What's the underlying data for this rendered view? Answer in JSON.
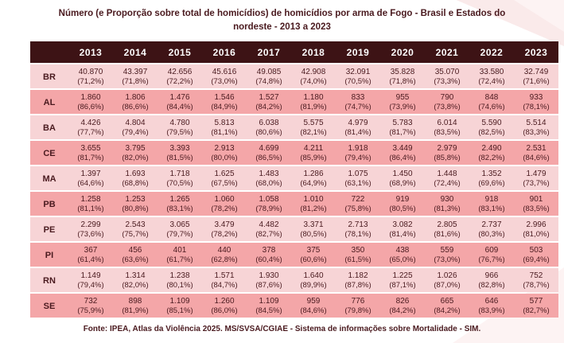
{
  "title": "Número (e Proporção sobre total de homicídios) de homicídios por arma de Fogo - Brasil e Estados do nordeste - 2013 a 2023",
  "source": "Fonte: IPEA, Atlas da Violência 2025. MS/SVSA/CGIAE - Sistema de informações sobre Mortalidade - SIM.",
  "colors": {
    "header_bg": "#3d1315",
    "row_light": "#f7d4d6",
    "row_dark": "#f4a6a8",
    "text": "#4a1a1f",
    "header_text": "#ffffff",
    "decoration": "#faeaea"
  },
  "chart_data": {
    "type": "table",
    "title": "Número (e Proporção sobre total de homicídios) de homicídios por arma de Fogo - Brasil e Estados do nordeste - 2013 a 2023",
    "columns": [
      "2013",
      "2014",
      "2015",
      "2016",
      "2017",
      "2018",
      "2019",
      "2020",
      "2021",
      "2022",
      "2023"
    ],
    "rows": [
      {
        "label": "BR",
        "values": [
          "40.870",
          "43.397",
          "42.656",
          "45.616",
          "49.085",
          "42.908",
          "32.091",
          "35.828",
          "35.070",
          "33.580",
          "32.749"
        ],
        "percents": [
          "(71,2%)",
          "(71,8%)",
          "(72,2%)",
          "(73,0%)",
          "(74,8%)",
          "(74,0%)",
          "(70,5%)",
          "(71,8%)",
          "(73,3%)",
          "(72,4%)",
          "(71,6%)"
        ]
      },
      {
        "label": "AL",
        "values": [
          "1.860",
          "1.806",
          "1.476",
          "1.546",
          "1.527",
          "1.180",
          "833",
          "955",
          "790",
          "848",
          "933"
        ],
        "percents": [
          "(86,6%)",
          "(86,6%)",
          "(84,4%)",
          "(84,9%)",
          "(84,2%)",
          "(81,9%)",
          "(74,7%)",
          "(73,9%)",
          "(73,8%)",
          "(74,6%)",
          "(78,1%)"
        ]
      },
      {
        "label": "BA",
        "values": [
          "4.426",
          "4.804",
          "4.780",
          "5.813",
          "6.038",
          "5.575",
          "4.979",
          "5.783",
          "6.014",
          "5.590",
          "5.514"
        ],
        "percents": [
          "(77,7%)",
          "(79,4%)",
          "(79,5%)",
          "(81,1%)",
          "(80,6%)",
          "(82,1%)",
          "(81,4%)",
          "(81,7%)",
          "(83,5%)",
          "(82,5%)",
          "(83,3%)"
        ]
      },
      {
        "label": "CE",
        "values": [
          "3.655",
          "3.795",
          "3.393",
          "2.913",
          "4.699",
          "4.211",
          "1.918",
          "3.449",
          "2.979",
          "2.490",
          "2.531"
        ],
        "percents": [
          "(81,7%)",
          "(82,0%)",
          "(81,5%)",
          "(80,0%)",
          "(86,5%)",
          "(85,9%)",
          "(79,4%)",
          "(86,4%)",
          "(85,8%)",
          "(82,2%)",
          "(84,6%)"
        ]
      },
      {
        "label": "MA",
        "values": [
          "1.397",
          "1.693",
          "1.718",
          "1.625",
          "1.483",
          "1.286",
          "1.075",
          "1.450",
          "1.448",
          "1.352",
          "1.479"
        ],
        "percents": [
          "(64,6%)",
          "(68,8%)",
          "(70,5%)",
          "(67,5%)",
          "(68,0%)",
          "(64,9%)",
          "(63,1%)",
          "(68,9%)",
          "(72,4%)",
          "(69,6%)",
          "(73,7%)"
        ]
      },
      {
        "label": "PB",
        "values": [
          "1.258",
          "1.253",
          "1.265",
          "1.060",
          "1.058",
          "1.010",
          "722",
          "919",
          "930",
          "918",
          "901"
        ],
        "percents": [
          "(81,1%)",
          "(80,8%)",
          "(83,1%)",
          "(78,2%)",
          "(78,9%)",
          "(81,2%)",
          "(75,8%)",
          "(80,5%)",
          "(81,3%)",
          "(83,1%)",
          "(83,5%)"
        ]
      },
      {
        "label": "PE",
        "values": [
          "2.299",
          "2.543",
          "3.065",
          "3.479",
          "4.482",
          "3.371",
          "2.713",
          "3.082",
          "2.805",
          "2.737",
          "2.996"
        ],
        "percents": [
          "(73,6%)",
          "(75,7%)",
          "(79,7%)",
          "(78,2%)",
          "(82,7%)",
          "(80,5%)",
          "(78,1%)",
          "(81,4%)",
          "(81,6%)",
          "(80,3%)",
          "(81,0%)"
        ]
      },
      {
        "label": "PI",
        "values": [
          "367",
          "456",
          "401",
          "440",
          "378",
          "375",
          "350",
          "438",
          "559",
          "609",
          "503"
        ],
        "percents": [
          "(61,4%)",
          "(63,6%)",
          "(61,7%)",
          "(62,8%)",
          "(60,4%)",
          "(60,6%)",
          "(61,5%)",
          "(65,0%)",
          "(73,0%)",
          "(76,7%)",
          "(69,4%)"
        ]
      },
      {
        "label": "RN",
        "values": [
          "1.149",
          "1.314",
          "1.238",
          "1.571",
          "1.930",
          "1.640",
          "1.182",
          "1.225",
          "1.026",
          "966",
          "752"
        ],
        "percents": [
          "(79,4%)",
          "(82,0%)",
          "(80,1%)",
          "(84,7%)",
          "(87,6%)",
          "(89,9%)",
          "(87,8%)",
          "(87,1%)",
          "(87,0%)",
          "(82,8%)",
          "(78,7%)"
        ]
      },
      {
        "label": "SE",
        "values": [
          "732",
          "898",
          "1.109",
          "1.260",
          "1.109",
          "959",
          "776",
          "826",
          "665",
          "646",
          "577"
        ],
        "percents": [
          "(75,9%)",
          "(81,9%)",
          "(85,1%)",
          "(86,0%)",
          "(84,5%)",
          "(84,6%)",
          "(79,8%)",
          "(84,2%)",
          "(84,2%)",
          "(83,9%)",
          "(82,7%)"
        ]
      }
    ]
  }
}
